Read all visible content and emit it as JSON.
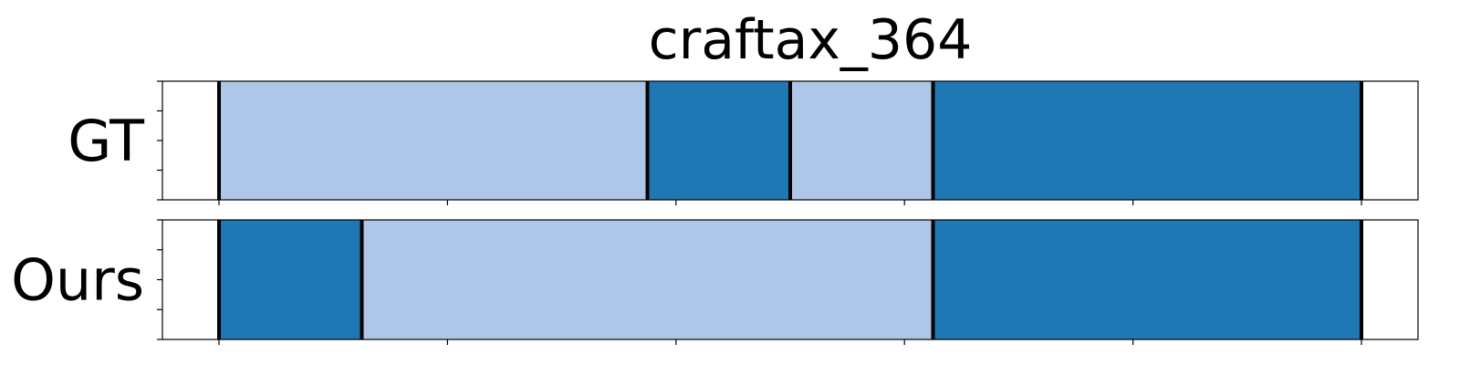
{
  "chart_data": {
    "type": "segmentation-timeline",
    "title": "craftax_364",
    "xlim": [
      0,
      1
    ],
    "grid": false,
    "colors": {
      "dark": "#1f77b4",
      "light": "#aec7e8",
      "boundary": "#000000",
      "frame": "#000000",
      "background": "#ffffff"
    },
    "rows": [
      {
        "label": "GT",
        "segments": [
          {
            "start": 0.0,
            "end": 0.375,
            "color": "light"
          },
          {
            "start": 0.375,
            "end": 0.5,
            "color": "dark"
          },
          {
            "start": 0.5,
            "end": 0.625,
            "color": "light"
          },
          {
            "start": 0.625,
            "end": 1.0,
            "color": "dark"
          }
        ],
        "boundaries": [
          0.0,
          0.375,
          0.5,
          0.625,
          1.0
        ]
      },
      {
        "label": "Ours",
        "segments": [
          {
            "start": 0.0,
            "end": 0.125,
            "color": "dark"
          },
          {
            "start": 0.125,
            "end": 0.625,
            "color": "light"
          },
          {
            "start": 0.625,
            "end": 1.0,
            "color": "dark"
          }
        ],
        "boundaries": [
          0.0,
          0.125,
          0.625,
          1.0
        ]
      }
    ],
    "x_ticks": [
      0.0,
      0.2,
      0.4,
      0.6,
      0.8,
      1.0
    ],
    "y_minor_ticks": 5
  }
}
